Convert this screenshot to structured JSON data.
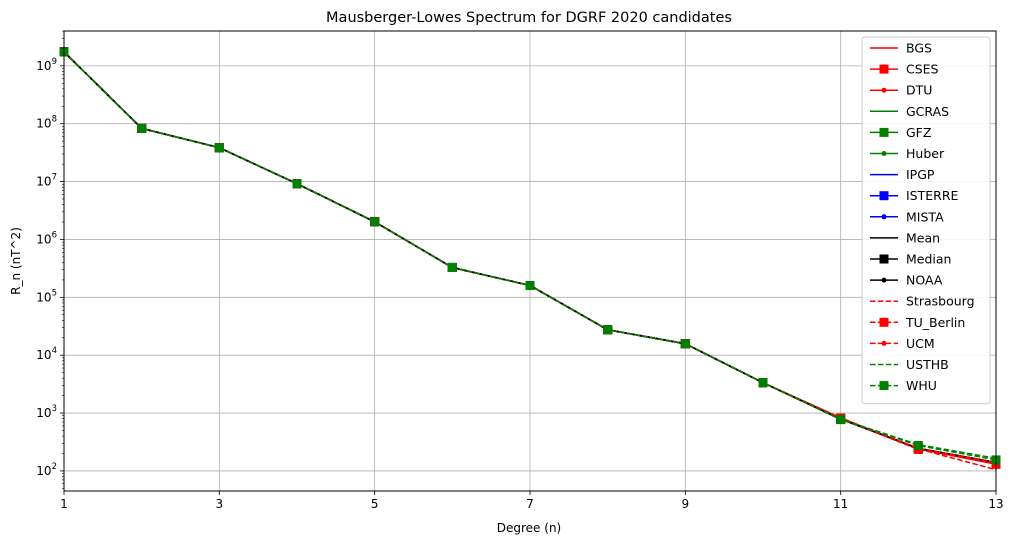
{
  "chart_data": {
    "type": "line",
    "title": "Mausberger-Lowes Spectrum for DGRF 2020 candidates",
    "xlabel": "Degree (n)",
    "ylabel": "R_n (nT^2)",
    "x": [
      1,
      2,
      3,
      4,
      5,
      6,
      7,
      8,
      9,
      10,
      11,
      12,
      13
    ],
    "xlim": [
      1,
      13
    ],
    "xticks": [
      1,
      3,
      5,
      7,
      9,
      11,
      13
    ],
    "yscale": "log",
    "ylim": [
      45,
      4000000000
    ],
    "yticks": [
      {
        "value": 100,
        "base": "10",
        "exp": "2"
      },
      {
        "value": 1000,
        "base": "10",
        "exp": "3"
      },
      {
        "value": 10000,
        "base": "10",
        "exp": "4"
      },
      {
        "value": 100000,
        "base": "10",
        "exp": "5"
      },
      {
        "value": 1000000,
        "base": "10",
        "exp": "6"
      },
      {
        "value": 10000000,
        "base": "10",
        "exp": "7"
      },
      {
        "value": 100000000,
        "base": "10",
        "exp": "8"
      },
      {
        "value": 1000000000,
        "base": "10",
        "exp": "9"
      }
    ],
    "grid": true,
    "legend_position": "top-right",
    "series": [
      {
        "name": "BGS",
        "color": "#ff0000",
        "dash": "solid",
        "marker": "none",
        "values": [
          1750000000,
          83000000,
          38500000,
          9200000,
          2020000,
          328000,
          160000,
          27500,
          15800,
          3350,
          790,
          245,
          140
        ]
      },
      {
        "name": "CSES",
        "color": "#ff0000",
        "dash": "solid",
        "marker": "square",
        "values": [
          1750000000,
          83000000,
          38500000,
          9200000,
          2020000,
          328000,
          160000,
          27500,
          15800,
          3350,
          820,
          240,
          130
        ]
      },
      {
        "name": "DTU",
        "color": "#ff0000",
        "dash": "solid",
        "marker": "dot",
        "values": [
          1750000000,
          83000000,
          38500000,
          9200000,
          2020000,
          328000,
          160000,
          27500,
          15800,
          3350,
          800,
          242,
          135
        ]
      },
      {
        "name": "GCRAS",
        "color": "#008000",
        "dash": "solid",
        "marker": "none",
        "values": [
          1750000000,
          83000000,
          38500000,
          9200000,
          2020000,
          328000,
          160000,
          27500,
          15800,
          3350,
          790,
          245,
          140
        ]
      },
      {
        "name": "GFZ",
        "color": "#008000",
        "dash": "solid",
        "marker": "square",
        "values": [
          1750000000,
          83000000,
          38500000,
          9200000,
          2020000,
          328000,
          160000,
          27500,
          15800,
          3350,
          790,
          245,
          140
        ]
      },
      {
        "name": "Huber",
        "color": "#008000",
        "dash": "solid",
        "marker": "dot",
        "values": [
          1750000000,
          83000000,
          38500000,
          9200000,
          2020000,
          328000,
          160000,
          27500,
          15800,
          3350,
          790,
          245,
          140
        ]
      },
      {
        "name": "IPGP",
        "color": "#0000ff",
        "dash": "solid",
        "marker": "none",
        "values": [
          1750000000,
          83000000,
          38500000,
          9200000,
          2020000,
          328000,
          160000,
          27500,
          15800,
          3350,
          790,
          245,
          140
        ]
      },
      {
        "name": "ISTERRE",
        "color": "#0000ff",
        "dash": "solid",
        "marker": "square",
        "values": [
          1750000000,
          83000000,
          38500000,
          9200000,
          2020000,
          328000,
          160000,
          27500,
          15800,
          3350,
          790,
          245,
          140
        ]
      },
      {
        "name": "MISTA",
        "color": "#0000ff",
        "dash": "solid",
        "marker": "dot",
        "values": [
          1750000000,
          83000000,
          38500000,
          9200000,
          2020000,
          328000,
          160000,
          27500,
          15800,
          3350,
          790,
          245,
          140
        ]
      },
      {
        "name": "Mean",
        "color": "#000000",
        "dash": "solid",
        "marker": "none",
        "values": [
          1750000000,
          83000000,
          38500000,
          9200000,
          2020000,
          328000,
          160000,
          27500,
          15800,
          3350,
          790,
          245,
          140
        ]
      },
      {
        "name": "Median",
        "color": "#000000",
        "dash": "solid",
        "marker": "square",
        "values": [
          1750000000,
          83000000,
          38500000,
          9200000,
          2020000,
          328000,
          160000,
          27500,
          15800,
          3350,
          790,
          245,
          140
        ]
      },
      {
        "name": "NOAA",
        "color": "#000000",
        "dash": "solid",
        "marker": "dot",
        "values": [
          1750000000,
          83000000,
          38500000,
          9200000,
          2020000,
          328000,
          160000,
          27500,
          15800,
          3350,
          790,
          245,
          140
        ]
      },
      {
        "name": "Strasbourg",
        "color": "#ff0000",
        "dash": "dashed",
        "marker": "none",
        "values": [
          1750000000,
          83000000,
          38500000,
          9200000,
          2020000,
          328000,
          160000,
          27500,
          15800,
          3350,
          830,
          240,
          105
        ]
      },
      {
        "name": "TU_Berlin",
        "color": "#ff0000",
        "dash": "dashed",
        "marker": "square",
        "values": [
          1750000000,
          83000000,
          38500000,
          9200000,
          2020000,
          328000,
          160000,
          27500,
          15800,
          3350,
          800,
          235,
          135
        ]
      },
      {
        "name": "UCM",
        "color": "#ff0000",
        "dash": "dashed",
        "marker": "dot",
        "values": [
          1750000000,
          83000000,
          38500000,
          9200000,
          2020000,
          328000,
          160000,
          27500,
          15800,
          3350,
          790,
          245,
          140
        ]
      },
      {
        "name": "USTHB",
        "color": "#008000",
        "dash": "dashed",
        "marker": "none",
        "values": [
          1750000000,
          83000000,
          38500000,
          9200000,
          2020000,
          328000,
          160000,
          27500,
          15800,
          3350,
          780,
          285,
          165
        ]
      },
      {
        "name": "WHU",
        "color": "#008000",
        "dash": "dashed",
        "marker": "square",
        "values": [
          1750000000,
          83000000,
          38500000,
          9200000,
          2020000,
          328000,
          160000,
          27500,
          15800,
          3350,
          770,
          275,
          155
        ]
      }
    ]
  }
}
